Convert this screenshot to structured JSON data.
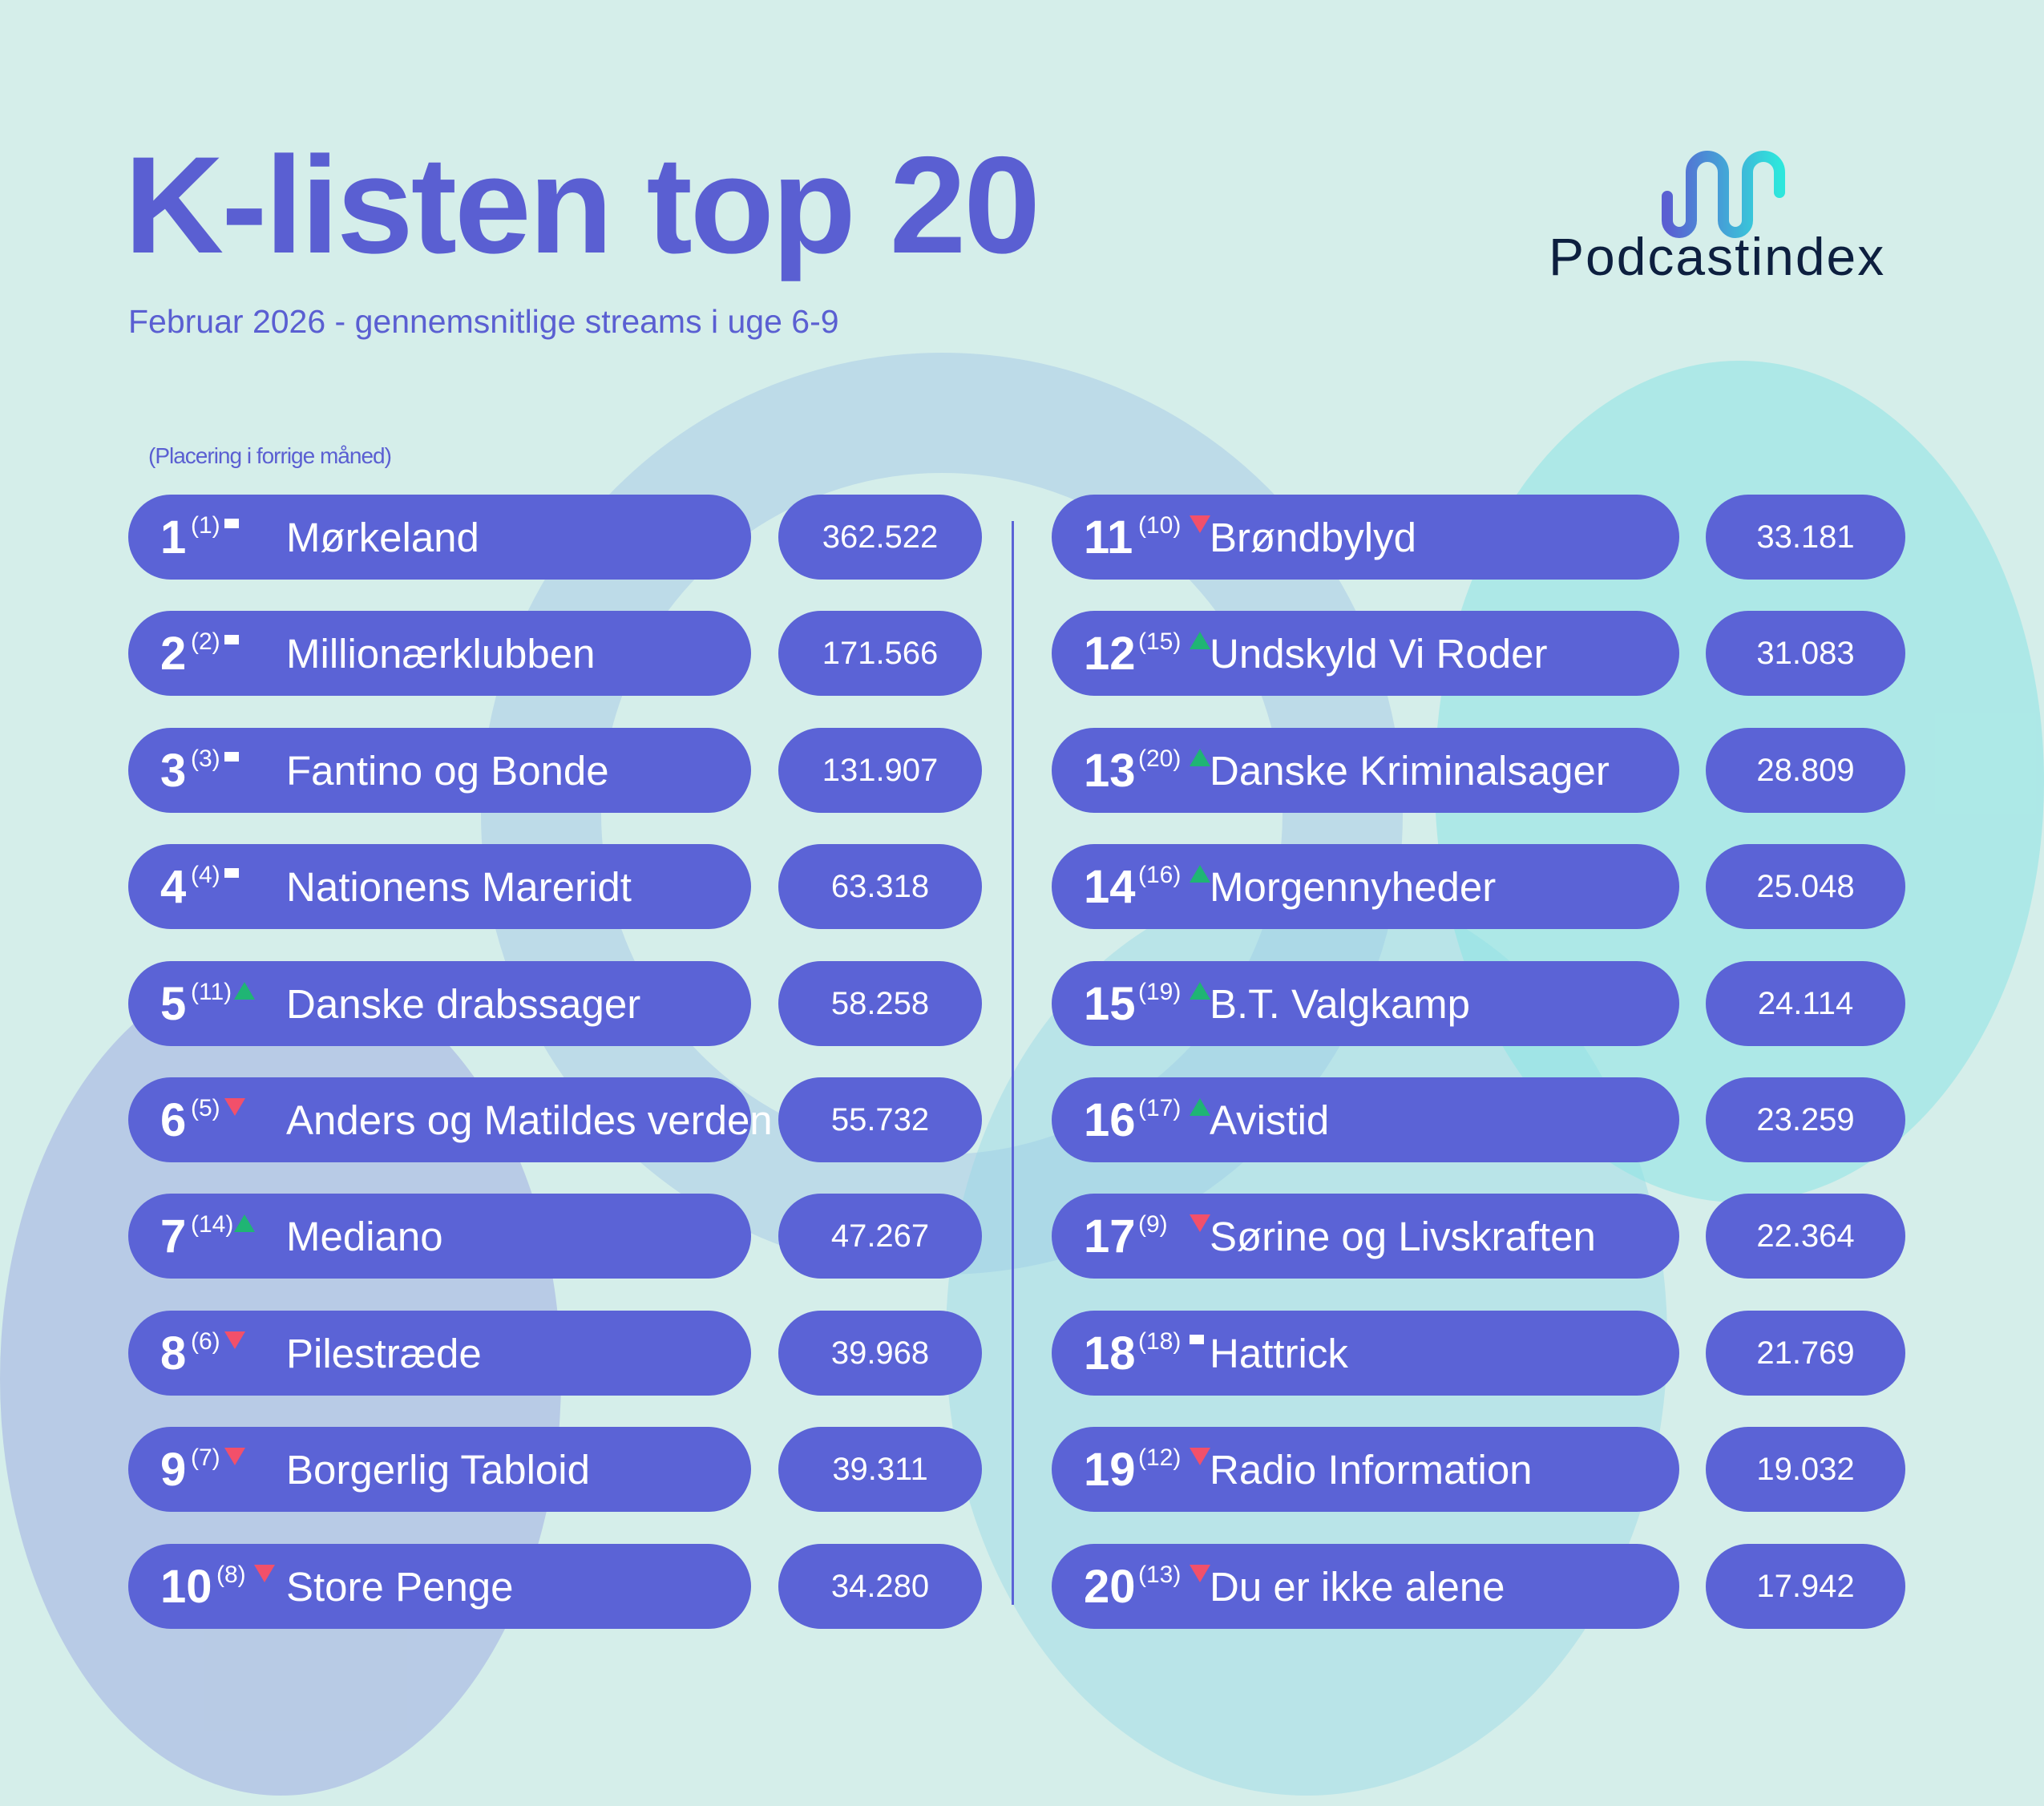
{
  "header": {
    "title": "K-listen top 20",
    "subtitle": "Februar 2026 - gennemsnitlige streams i uge 6-9",
    "note": "(Placering i forrige måned)"
  },
  "logo": {
    "text": "Podcastindex",
    "colors": [
      "#5a5fd2",
      "#2ee6dc"
    ]
  },
  "colors": {
    "pill": "#5b63d6",
    "up": "#1fb574",
    "down": "#f2506a",
    "background": "#d5eeea"
  },
  "rows": [
    {
      "rank": "1",
      "prev": "(1)",
      "trend": "same",
      "name": "Mørkeland",
      "streams": "362.522"
    },
    {
      "rank": "2",
      "prev": "(2)",
      "trend": "same",
      "name": "Millionærklubben",
      "streams": "171.566"
    },
    {
      "rank": "3",
      "prev": "(3)",
      "trend": "same",
      "name": "Fantino og Bonde",
      "streams": "131.907"
    },
    {
      "rank": "4",
      "prev": "(4)",
      "trend": "same",
      "name": "Nationens Mareridt",
      "streams": "63.318"
    },
    {
      "rank": "5",
      "prev": "(11)",
      "trend": "up",
      "name": "Danske drabssager",
      "streams": "58.258"
    },
    {
      "rank": "6",
      "prev": "(5)",
      "trend": "down",
      "name": "Anders og Matildes verden",
      "streams": "55.732"
    },
    {
      "rank": "7",
      "prev": "(14)",
      "trend": "up",
      "name": "Mediano",
      "streams": "47.267"
    },
    {
      "rank": "8",
      "prev": "(6)",
      "trend": "down",
      "name": "Pilestræde",
      "streams": "39.968"
    },
    {
      "rank": "9",
      "prev": "(7)",
      "trend": "down",
      "name": "Borgerlig Tabloid",
      "streams": "39.311"
    },
    {
      "rank": "10",
      "prev": "(8)",
      "trend": "down",
      "name": "Store Penge",
      "streams": "34.280"
    },
    {
      "rank": "11",
      "prev": "(10)",
      "trend": "down",
      "name": "Brøndbylyd",
      "streams": "33.181"
    },
    {
      "rank": "12",
      "prev": "(15)",
      "trend": "up",
      "name": "Undskyld Vi Roder",
      "streams": "31.083"
    },
    {
      "rank": "13",
      "prev": "(20)",
      "trend": "up",
      "name": "Danske Kriminalsager",
      "streams": "28.809"
    },
    {
      "rank": "14",
      "prev": "(16)",
      "trend": "up",
      "name": "Morgennyheder",
      "streams": "25.048"
    },
    {
      "rank": "15",
      "prev": "(19)",
      "trend": "up",
      "name": "B.T. Valgkamp",
      "streams": "24.114"
    },
    {
      "rank": "16",
      "prev": "(17)",
      "trend": "up",
      "name": "Avistid",
      "streams": "23.259"
    },
    {
      "rank": "17",
      "prev": "(9)",
      "trend": "down",
      "name": "Sørine og Livskraften",
      "streams": "22.364"
    },
    {
      "rank": "18",
      "prev": "(18)",
      "trend": "same",
      "name": "Hattrick",
      "streams": "21.769"
    },
    {
      "rank": "19",
      "prev": "(12)",
      "trend": "down",
      "name": "Radio Information",
      "streams": "19.032"
    },
    {
      "rank": "20",
      "prev": "(13)",
      "trend": "down",
      "name": "Du er ikke alene",
      "streams": "17.942"
    }
  ]
}
